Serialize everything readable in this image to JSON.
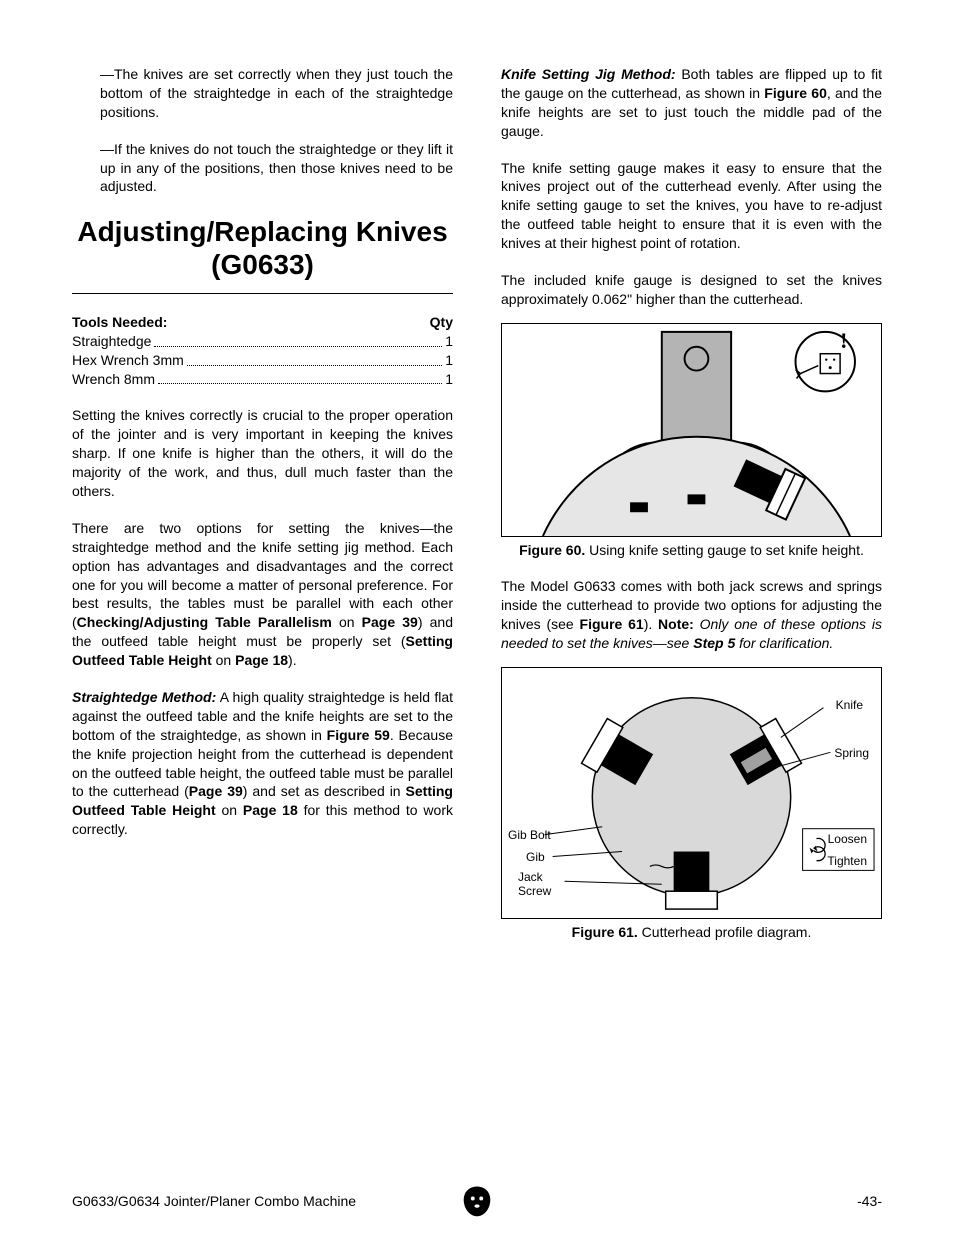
{
  "left": {
    "bullet1": "—The knives are set correctly when they just touch the bottom of the straightedge in each of the straightedge positions.",
    "bullet2": "—If the knives do not touch the straightedge or they lift it up in any of the positions, then those knives need to be adjusted.",
    "heading": "Adjusting/Replacing Knives (G0633)",
    "tools_head_l": "Tools Needed:",
    "tools_head_r": "Qty",
    "tools": [
      {
        "name": "Straightedge",
        "qty": "1"
      },
      {
        "name": "Hex Wrench 3mm",
        "qty": "1"
      },
      {
        "name": "Wrench 8mm",
        "qty": "1"
      }
    ],
    "p1": "Setting the knives correctly is crucial to the proper operation of the jointer and is very important in keeping the knives sharp. If one knife is higher than the others, it will do the majority of the work, and thus, dull much faster than the others.",
    "p2_a": "There are two options for setting the knives—the straightedge method and the knife setting jig method. Each option has advantages and disadvantages and the correct one for you will become a matter of personal preference. For best results, the tables must be parallel with each other (",
    "p2_b": "Checking/Adjusting Table Parallelism",
    "p2_c": " on ",
    "p2_d": "Page 39",
    "p2_e": ") and the outfeed table height must be properly set (",
    "p2_f": "Setting Outfeed Table Height",
    "p2_g": " on ",
    "p2_h": "Page 18",
    "p2_i": ").",
    "p3_label": "Straightedge Method:",
    "p3_a": " A high quality straightedge is held flat against the outfeed table and the knife heights are set to the bottom of the straightedge, as shown in ",
    "p3_b": "Figure 59",
    "p3_c": ". Because the knife projection height from the cutterhead is dependent on the outfeed table height, the outfeed table must be parallel to the cutterhead (",
    "p3_d": "Page 39",
    "p3_e": ") and set as described in ",
    "p3_f": "Setting Outfeed Table Height",
    "p3_g": " on ",
    "p3_h": "Page 18",
    "p3_i": " for this method to work correctly."
  },
  "right": {
    "p1_label": "Knife Setting Jig Method:",
    "p1_a": " Both tables are flipped up to fit the gauge on the cutterhead, as shown in ",
    "p1_b": "Figure 60",
    "p1_c": ", and the knife heights are set to just touch the middle pad of the gauge.",
    "p2": "The knife setting gauge makes it easy to ensure that the knives project out of the cutterhead evenly. After using the knife setting gauge to set the knives, you have to re-adjust the outfeed table height to ensure that it is even with the knives at their highest point of rotation.",
    "p3": "The included knife gauge is designed to set the knives approximately 0.062\" higher than the cutterhead.",
    "fig60_cap_a": "Figure 60.",
    "fig60_cap_b": " Using knife setting gauge to set knife height.",
    "p4_a": "The Model G0633 comes with both jack screws and springs inside the cutterhead to provide two options for adjusting the knives (see ",
    "p4_b": "Figure 61",
    "p4_c": "). ",
    "p4_d": "Note:",
    "p4_e": " Only one of these options is needed to set the knives—see ",
    "p4_f": "Step 5",
    "p4_g": " for clarification.",
    "fig61_cap_a": "Figure 61.",
    "fig61_cap_b": " Cutterhead profile diagram.",
    "labels": {
      "knife": "Knife",
      "spring": "Spring",
      "gib_bolt": "Gib Bolt",
      "gib": "Gib",
      "jack_screw": "Jack\nScrew",
      "loosen": "Loosen",
      "tighten": "Tighten"
    }
  },
  "footer": {
    "left": "G0633/G0634 Jointer/Planer Combo Machine",
    "right": "-43-"
  },
  "colors": {
    "text": "#000000",
    "bg": "#ffffff",
    "gray_fill": "#b4b4b4",
    "light_gray": "#d9d9d9"
  }
}
